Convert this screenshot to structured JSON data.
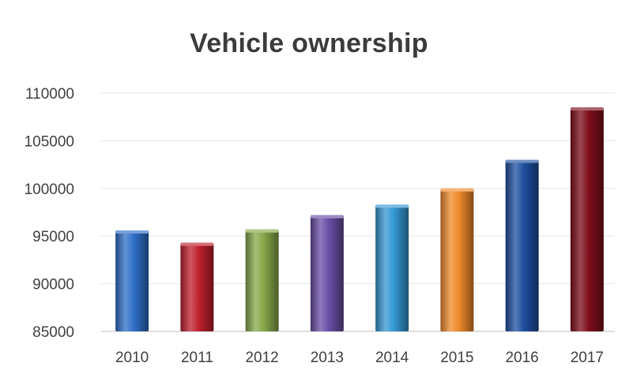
{
  "chart_data": {
    "type": "bar",
    "title": "Vehicle ownership",
    "xlabel": "",
    "ylabel": "",
    "categories": [
      "2010",
      "2011",
      "2012",
      "2013",
      "2014",
      "2015",
      "2016",
      "2017"
    ],
    "values": [
      95600,
      94300,
      95700,
      97200,
      98300,
      100000,
      103000,
      108500
    ],
    "colors": [
      "#2f6fc8",
      "#c0202e",
      "#86a84a",
      "#6a4fa6",
      "#3598d4",
      "#f08a2c",
      "#1f4fa0",
      "#7e0e1a"
    ],
    "ylim": [
      85000,
      110000
    ],
    "yticks": [
      85000,
      90000,
      95000,
      100000,
      105000,
      110000
    ],
    "grid": true,
    "legend": "none"
  }
}
